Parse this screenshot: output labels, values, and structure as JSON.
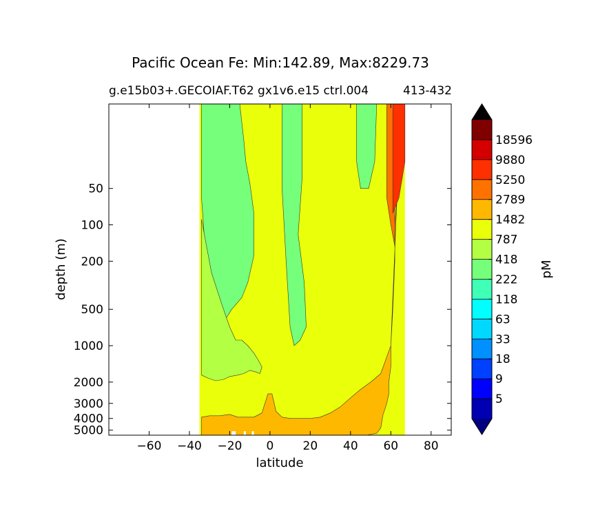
{
  "chart_data": {
    "type": "heatmap",
    "title": "Pacific Ocean Fe: Min:142.89, Max:8229.73",
    "subtitle": "g.e15b03+.GECOIAF.T62 gx1v6.e15 ctrl.004",
    "subtitle_right": "413-432",
    "xlabel": "latitude",
    "ylabel": "depth (m)",
    "xlim": [
      -80,
      90
    ],
    "ylim": [
      5500,
      10
    ],
    "yscale": "log",
    "xticks": [
      -60,
      -40,
      -20,
      0,
      20,
      40,
      60,
      80
    ],
    "xtick_labels": [
      "−60",
      "−40",
      "−20",
      "0",
      "20",
      "40",
      "60",
      "80"
    ],
    "yticks": [
      50,
      100,
      200,
      500,
      1000,
      2000,
      3000,
      4000,
      5000
    ],
    "ytick_labels": [
      "50",
      "100",
      "200",
      "500",
      "1000",
      "2000",
      "3000",
      "4000",
      "5000"
    ],
    "colorbar": {
      "label": "pM",
      "extend": "both",
      "levels": [
        5,
        9,
        18,
        33,
        63,
        118,
        222,
        418,
        787,
        1482,
        2789,
        5250,
        9880,
        18596
      ],
      "labels": [
        "5",
        "9",
        "18",
        "33",
        "63",
        "118",
        "222",
        "418",
        "787",
        "1482",
        "2789",
        "5250",
        "9880",
        "18596"
      ],
      "under_color": "#000080",
      "over_color": "#000000",
      "colors": [
        "#0000b2",
        "#0000ff",
        "#0040ff",
        "#0090ff",
        "#00d8ff",
        "#00ffff",
        "#40ffb6",
        "#76ff7a",
        "#b2ff43",
        "#eaff0a",
        "#ffb800",
        "#ff7200",
        "#ff3000",
        "#d40000",
        "#800000"
      ]
    },
    "data_extent": {
      "lat_min": -35,
      "lat_max": 67
    },
    "regions": [
      {
        "bin": "222-418",
        "lat": [
          -34,
          -29,
          -26,
          -24,
          -23,
          -20,
          -19,
          -18,
          -15,
          -13,
          -12,
          -10,
          -9,
          -8,
          -8,
          -11,
          -14,
          -19,
          -22,
          -26,
          -29,
          -34
        ],
        "depth": [
          10,
          10,
          10,
          10,
          10,
          10,
          10,
          10,
          10,
          20,
          30,
          45,
          60,
          80,
          180,
          300,
          400,
          500,
          600,
          800,
          850,
          60
        ]
      },
      {
        "bin": "222-418",
        "lat": [
          6,
          16,
          16,
          14,
          17,
          18,
          15,
          12,
          10,
          8,
          6
        ],
        "depth": [
          10,
          10,
          40,
          120,
          300,
          700,
          900,
          1000,
          700,
          200,
          50
        ]
      },
      {
        "bin": "222-418",
        "lat": [
          43,
          53,
          52,
          49,
          45,
          43
        ],
        "depth": [
          10,
          10,
          30,
          50,
          50,
          30
        ]
      },
      {
        "bin": "418-787",
        "lat": [
          -34,
          -29,
          -24,
          -20,
          -17,
          -14,
          -11,
          -8,
          -6,
          -4,
          -5,
          -7,
          -10,
          -13,
          -16,
          -20,
          -23,
          -27,
          -31,
          -34
        ],
        "depth": [
          90,
          250,
          450,
          700,
          900,
          900,
          1000,
          1150,
          1300,
          1500,
          1700,
          1650,
          1600,
          1700,
          1750,
          1800,
          1900,
          1950,
          1850,
          1750
        ]
      },
      {
        "bin": "1482-2789",
        "lat": [
          -34,
          -20,
          -15,
          -10,
          -5,
          -2,
          1,
          4,
          10,
          20,
          30,
          40,
          48,
          53,
          55,
          56,
          58,
          59,
          59,
          60,
          60,
          61,
          62,
          62,
          63,
          63,
          64,
          65,
          65,
          65,
          60,
          55,
          50,
          45,
          40,
          35,
          30,
          25,
          20,
          15,
          10,
          6,
          3,
          1,
          -1,
          -4,
          -8,
          -12,
          -16,
          -20,
          -25,
          -30,
          -34
        ],
        "depth": [
          5500,
          5500,
          5500,
          5500,
          5500,
          5500,
          5500,
          5500,
          5500,
          5500,
          5500,
          5500,
          5500,
          5300,
          4800,
          3800,
          3000,
          2500,
          2000,
          1500,
          1000,
          500,
          200,
          100,
          60,
          10,
          10,
          10,
          10,
          10,
          1000,
          1700,
          2000,
          2300,
          2700,
          3200,
          3600,
          3900,
          4000,
          4000,
          4000,
          3900,
          3500,
          2500,
          2500,
          3600,
          3900,
          3900,
          3900,
          3700,
          3800,
          3800,
          3900
        ]
      },
      {
        "bin": "2789-5250",
        "lat": [
          58,
          62,
          62,
          60,
          58
        ],
        "depth": [
          10,
          10,
          150,
          100,
          60
        ]
      },
      {
        "bin": "5250-9880",
        "lat": [
          61,
          67,
          67,
          64,
          61
        ],
        "depth": [
          10,
          10,
          30,
          60,
          80
        ]
      }
    ],
    "gaps": [
      {
        "lat": [
          -19,
          -17
        ],
        "depth": [
          5100,
          5500
        ]
      },
      {
        "lat": [
          -13,
          -12
        ],
        "depth": [
          5100,
          5500
        ]
      },
      {
        "lat": [
          -9,
          -8
        ],
        "depth": [
          5100,
          5500
        ]
      }
    ]
  }
}
